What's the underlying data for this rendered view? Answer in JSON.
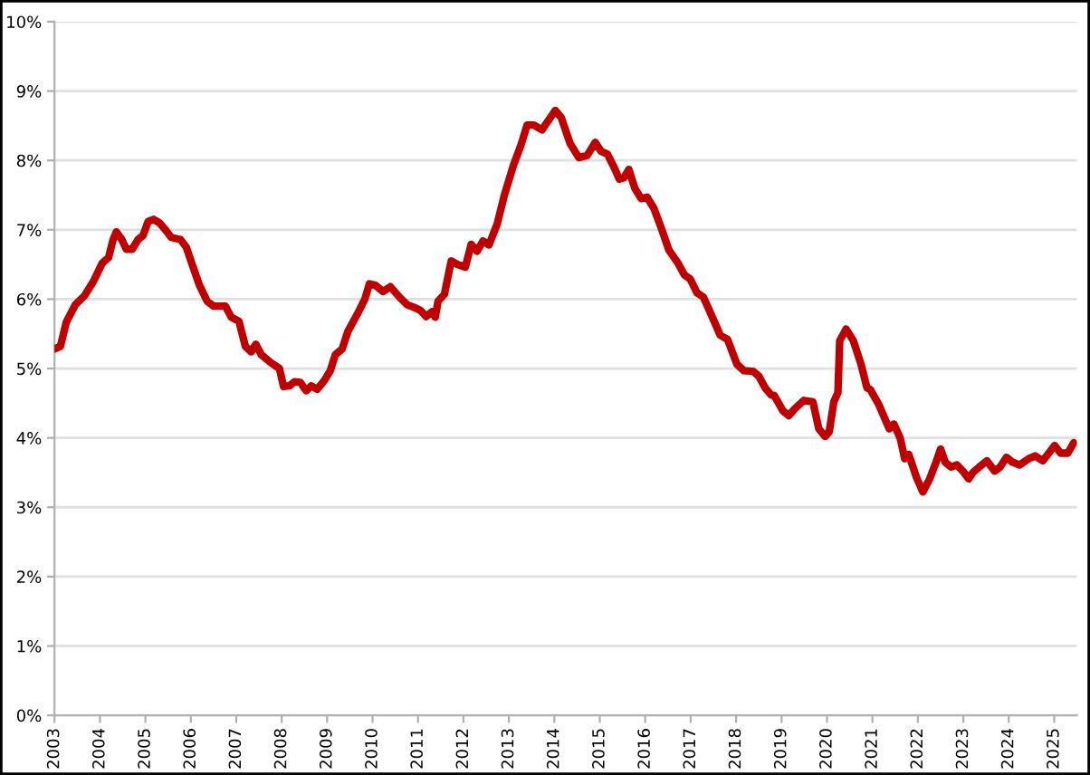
{
  "chart_data": {
    "type": "line",
    "x": [
      2003.0,
      2003.13,
      2003.26,
      2003.46,
      2003.66,
      2003.86,
      2004.05,
      2004.19,
      2004.29,
      2004.36,
      2004.48,
      2004.58,
      2004.71,
      2004.84,
      2004.95,
      2005.06,
      2005.18,
      2005.31,
      2005.44,
      2005.57,
      2005.77,
      2005.9,
      2006.03,
      2006.19,
      2006.36,
      2006.5,
      2006.76,
      2006.89,
      2007.06,
      2007.2,
      2007.33,
      2007.43,
      2007.55,
      2007.75,
      2007.95,
      2008.04,
      2008.17,
      2008.28,
      2008.41,
      2008.54,
      2008.65,
      2008.78,
      2008.94,
      2009.07,
      2009.18,
      2009.33,
      2009.46,
      2009.66,
      2009.83,
      2009.93,
      2010.06,
      2010.23,
      2010.39,
      2010.59,
      2010.76,
      2010.92,
      2011.05,
      2011.18,
      2011.31,
      2011.38,
      2011.44,
      2011.58,
      2011.73,
      2011.87,
      2012.04,
      2012.17,
      2012.3,
      2012.43,
      2012.56,
      2012.74,
      2012.9,
      2013.1,
      2013.27,
      2013.4,
      2013.55,
      2013.73,
      2013.82,
      2014.02,
      2014.15,
      2014.35,
      2014.54,
      2014.72,
      2014.9,
      2015.03,
      2015.17,
      2015.3,
      2015.43,
      2015.53,
      2015.64,
      2015.77,
      2015.91,
      2016.04,
      2016.19,
      2016.35,
      2016.52,
      2016.72,
      2016.86,
      2016.99,
      2017.14,
      2017.28,
      2017.45,
      2017.65,
      2017.81,
      2018.02,
      2018.17,
      2018.37,
      2018.5,
      2018.64,
      2018.77,
      2018.84,
      2019.03,
      2019.16,
      2019.29,
      2019.49,
      2019.69,
      2019.82,
      2019.96,
      2020.05,
      2020.15,
      2020.24,
      2020.28,
      2020.42,
      2020.58,
      2020.75,
      2020.88,
      2020.95,
      2021.14,
      2021.37,
      2021.47,
      2021.61,
      2021.71,
      2021.8,
      2021.97,
      2022.11,
      2022.26,
      2022.4,
      2022.5,
      2022.6,
      2022.73,
      2022.86,
      2022.99,
      2023.12,
      2023.21,
      2023.35,
      2023.52,
      2023.69,
      2023.81,
      2023.95,
      2024.08,
      2024.24,
      2024.44,
      2024.58,
      2024.75,
      2024.88,
      2025.01,
      2025.14,
      2025.3,
      2025.43
    ],
    "series": [
      {
        "color": "#c00000",
        "values": [
          5.28,
          5.32,
          5.67,
          5.92,
          6.05,
          6.26,
          6.52,
          6.6,
          6.86,
          6.97,
          6.86,
          6.72,
          6.72,
          6.86,
          6.92,
          7.12,
          7.15,
          7.1,
          7.0,
          6.89,
          6.86,
          6.75,
          6.5,
          6.2,
          5.97,
          5.9,
          5.9,
          5.74,
          5.68,
          5.32,
          5.24,
          5.35,
          5.2,
          5.09,
          5.0,
          4.74,
          4.75,
          4.81,
          4.8,
          4.68,
          4.75,
          4.7,
          4.83,
          4.97,
          5.2,
          5.28,
          5.54,
          5.78,
          6.0,
          6.22,
          6.2,
          6.11,
          6.18,
          6.03,
          5.92,
          5.88,
          5.84,
          5.75,
          5.82,
          5.74,
          5.97,
          6.07,
          6.55,
          6.5,
          6.46,
          6.79,
          6.69,
          6.84,
          6.78,
          7.08,
          7.5,
          7.93,
          8.23,
          8.51,
          8.51,
          8.44,
          8.53,
          8.72,
          8.62,
          8.24,
          8.04,
          8.07,
          8.26,
          8.13,
          8.09,
          7.92,
          7.73,
          7.75,
          7.87,
          7.6,
          7.45,
          7.47,
          7.31,
          7.03,
          6.71,
          6.52,
          6.35,
          6.29,
          6.09,
          6.03,
          5.78,
          5.48,
          5.42,
          5.06,
          4.97,
          4.96,
          4.89,
          4.72,
          4.62,
          4.61,
          4.39,
          4.32,
          4.42,
          4.54,
          4.52,
          4.13,
          4.02,
          4.09,
          4.52,
          4.65,
          5.4,
          5.57,
          5.4,
          5.06,
          4.72,
          4.7,
          4.48,
          4.13,
          4.2,
          4.0,
          3.7,
          3.76,
          3.43,
          3.22,
          3.41,
          3.65,
          3.84,
          3.65,
          3.58,
          3.61,
          3.52,
          3.41,
          3.5,
          3.58,
          3.67,
          3.52,
          3.58,
          3.72,
          3.65,
          3.61,
          3.7,
          3.74,
          3.67,
          3.78,
          3.89,
          3.78,
          3.78,
          3.93
        ]
      }
    ],
    "xlim": [
      2003,
      2025.5
    ],
    "xticks": [
      2003,
      2004,
      2005,
      2006,
      2007,
      2008,
      2009,
      2010,
      2011,
      2012,
      2013,
      2014,
      2015,
      2016,
      2017,
      2018,
      2019,
      2020,
      2021,
      2022,
      2023,
      2024,
      2025
    ],
    "ylim": [
      0,
      10
    ],
    "yticks": [
      {
        "value": 0,
        "label": "0%"
      },
      {
        "value": 1,
        "label": "1%"
      },
      {
        "value": 2,
        "label": "2%"
      },
      {
        "value": 3,
        "label": "3%"
      },
      {
        "value": 4,
        "label": "4%"
      },
      {
        "value": 5,
        "label": "5%"
      },
      {
        "value": 6,
        "label": "6%"
      },
      {
        "value": 7,
        "label": "7%"
      },
      {
        "value": 8,
        "label": "8%"
      },
      {
        "value": 9,
        "label": "9%"
      },
      {
        "value": 10,
        "label": "10%"
      }
    ],
    "grid": "y",
    "line_style": "solid",
    "marker": "none"
  }
}
